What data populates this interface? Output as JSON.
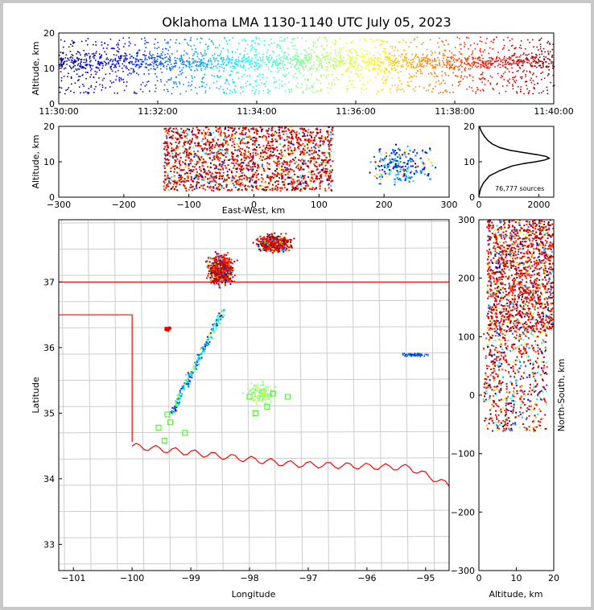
{
  "title": "Oklahoma LMA 1130-1140 UTC July 05, 2023",
  "chart_data": [
    {
      "id": "time-height",
      "type": "scatter",
      "ylabel": "Altitude, km",
      "xlim": [
        "11:30:00",
        "11:40:00"
      ],
      "ylim": [
        0,
        20
      ],
      "xticks": [
        "11:30:00",
        "11:32:00",
        "11:34:00",
        "11:36:00",
        "11:38:00",
        "11:40:00"
      ],
      "yticks": [
        "0",
        "10",
        "20"
      ],
      "colormap": "jet (by time)"
    },
    {
      "id": "ew-height",
      "type": "scatter",
      "xlabel": "East-West, km",
      "ylabel": "Altitude, km",
      "xlim": [
        -300,
        300
      ],
      "ylim": [
        0,
        20
      ],
      "xticks": [
        "−300",
        "−200",
        "−100",
        "0",
        "100",
        "200",
        "300"
      ],
      "yticks": [
        "0",
        "10",
        "20"
      ]
    },
    {
      "id": "altitude-histogram",
      "type": "line",
      "xlim": [
        0,
        2500
      ],
      "ylim": [
        0,
        20
      ],
      "xticks": [
        "0",
        "2000"
      ],
      "yticks": [
        "0",
        "10",
        "20"
      ],
      "annotation": "76,777 sources",
      "x": [
        0,
        60,
        150,
        350,
        700,
        1100,
        1500,
        1900,
        2200,
        2350,
        2250,
        1950,
        1500,
        1050,
        700,
        450,
        300,
        200,
        120,
        60,
        20
      ],
      "y": [
        0.3,
        2.5,
        4,
        6,
        7.5,
        8.8,
        9.5,
        10,
        10.5,
        11,
        11.5,
        12,
        12.6,
        13.2,
        14,
        15,
        16,
        17,
        18,
        19,
        20
      ]
    },
    {
      "id": "plan-view",
      "type": "scatter",
      "xlabel": "Longitude",
      "ylabel": "Latitude",
      "xlim": [
        -101.25,
        -94.6
      ],
      "ylim": [
        32.6,
        37.95
      ],
      "xticks": [
        "−101",
        "−100",
        "−99",
        "−98",
        "−97",
        "−96",
        "−95"
      ],
      "yticks": [
        "33",
        "34",
        "35",
        "36",
        "37"
      ],
      "stations_color": "#44ee22",
      "border_color": "#ff0000"
    },
    {
      "id": "ns-altitude",
      "type": "scatter",
      "xlabel": "Altitude, km",
      "ylabel": "North-South, km",
      "xlim": [
        0,
        20
      ],
      "ylim": [
        -300,
        300
      ],
      "xticks": [
        "0",
        "10",
        "20"
      ],
      "yticks": [
        "−300",
        "−200",
        "−100",
        "0",
        "100",
        "200",
        "300"
      ]
    }
  ]
}
